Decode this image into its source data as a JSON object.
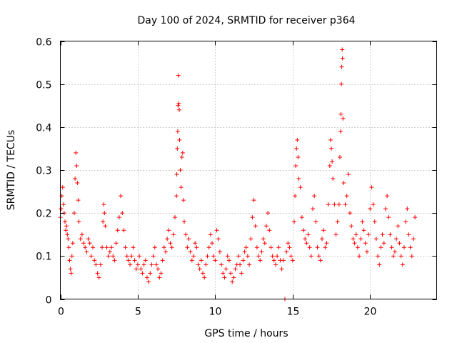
{
  "chart_data": {
    "type": "scatter",
    "title": "Day 100 of 2024, SRMTID for receiver p364",
    "xlabel": "GPS time / hours",
    "ylabel": "SRMTID / TECUs",
    "xlim": [
      0,
      24.3
    ],
    "ylim": [
      0,
      0.6
    ],
    "xticks": [
      0,
      5,
      10,
      15,
      20
    ],
    "xtick_labels": [
      "0",
      "5",
      "10",
      "15",
      "20"
    ],
    "yticks": [
      0,
      0.1,
      0.2,
      0.3,
      0.4,
      0.5,
      0.6
    ],
    "ytick_labels": [
      "0",
      "0.1",
      "0.2",
      "0.3",
      "0.4",
      "0.5",
      "0.6"
    ],
    "grid": true,
    "marker": "+",
    "color": "#ff0000",
    "series": [
      {
        "name": "SRMTID",
        "points": [
          [
            0.0,
            0.19
          ],
          [
            0.05,
            0.21
          ],
          [
            0.1,
            0.24
          ],
          [
            0.15,
            0.26
          ],
          [
            0.2,
            0.22
          ],
          [
            0.25,
            0.2
          ],
          [
            0.3,
            0.18
          ],
          [
            0.35,
            0.16
          ],
          [
            0.4,
            0.17
          ],
          [
            0.45,
            0.15
          ],
          [
            0.5,
            0.14
          ],
          [
            0.55,
            0.12
          ],
          [
            0.6,
            0.09
          ],
          [
            0.65,
            0.07
          ],
          [
            0.7,
            0.06
          ],
          [
            0.75,
            0.1
          ],
          [
            0.8,
            0.13
          ],
          [
            0.9,
            0.2
          ],
          [
            0.95,
            0.28
          ],
          [
            1.0,
            0.34
          ],
          [
            1.05,
            0.31
          ],
          [
            1.1,
            0.27
          ],
          [
            1.15,
            0.23
          ],
          [
            1.2,
            0.18
          ],
          [
            1.3,
            0.14
          ],
          [
            1.4,
            0.15
          ],
          [
            1.5,
            0.13
          ],
          [
            1.6,
            0.12
          ],
          [
            1.7,
            0.11
          ],
          [
            1.8,
            0.14
          ],
          [
            1.9,
            0.13
          ],
          [
            2.0,
            0.1
          ],
          [
            2.1,
            0.12
          ],
          [
            2.2,
            0.09
          ],
          [
            2.3,
            0.08
          ],
          [
            2.4,
            0.06
          ],
          [
            2.5,
            0.05
          ],
          [
            2.6,
            0.08
          ],
          [
            2.7,
            0.12
          ],
          [
            2.75,
            0.18
          ],
          [
            2.8,
            0.22
          ],
          [
            2.85,
            0.2
          ],
          [
            2.9,
            0.17
          ],
          [
            3.0,
            0.12
          ],
          [
            3.1,
            0.1
          ],
          [
            3.2,
            0.11
          ],
          [
            3.3,
            0.12
          ],
          [
            3.4,
            0.1
          ],
          [
            3.5,
            0.09
          ],
          [
            3.6,
            0.13
          ],
          [
            3.7,
            0.16
          ],
          [
            3.8,
            0.19
          ],
          [
            3.9,
            0.24
          ],
          [
            4.0,
            0.2
          ],
          [
            4.1,
            0.16
          ],
          [
            4.2,
            0.12
          ],
          [
            4.3,
            0.1
          ],
          [
            4.4,
            0.09
          ],
          [
            4.5,
            0.08
          ],
          [
            4.6,
            0.1
          ],
          [
            4.7,
            0.12
          ],
          [
            4.8,
            0.09
          ],
          [
            4.9,
            0.07
          ],
          [
            5.0,
            0.08
          ],
          [
            5.1,
            0.1
          ],
          [
            5.2,
            0.07
          ],
          [
            5.3,
            0.06
          ],
          [
            5.4,
            0.08
          ],
          [
            5.5,
            0.09
          ],
          [
            5.6,
            0.05
          ],
          [
            5.7,
            0.04
          ],
          [
            5.8,
            0.06
          ],
          [
            5.9,
            0.08
          ],
          [
            6.0,
            0.1
          ],
          [
            6.1,
            0.12
          ],
          [
            6.2,
            0.08
          ],
          [
            6.3,
            0.07
          ],
          [
            6.4,
            0.05
          ],
          [
            6.5,
            0.06
          ],
          [
            6.6,
            0.09
          ],
          [
            6.7,
            0.12
          ],
          [
            6.8,
            0.11
          ],
          [
            6.9,
            0.14
          ],
          [
            7.0,
            0.16
          ],
          [
            7.1,
            0.13
          ],
          [
            7.2,
            0.12
          ],
          [
            7.3,
            0.15
          ],
          [
            7.4,
            0.19
          ],
          [
            7.5,
            0.24
          ],
          [
            7.52,
            0.29
          ],
          [
            7.55,
            0.35
          ],
          [
            7.58,
            0.39
          ],
          [
            7.6,
            0.45
          ],
          [
            7.62,
            0.52
          ],
          [
            7.65,
            0.455
          ],
          [
            7.68,
            0.44
          ],
          [
            7.7,
            0.37
          ],
          [
            7.75,
            0.3
          ],
          [
            7.8,
            0.26
          ],
          [
            7.85,
            0.33
          ],
          [
            7.9,
            0.34
          ],
          [
            7.95,
            0.23
          ],
          [
            8.0,
            0.18
          ],
          [
            8.1,
            0.15
          ],
          [
            8.2,
            0.12
          ],
          [
            8.3,
            0.14
          ],
          [
            8.4,
            0.11
          ],
          [
            8.5,
            0.09
          ],
          [
            8.6,
            0.1
          ],
          [
            8.7,
            0.13
          ],
          [
            8.8,
            0.12
          ],
          [
            8.9,
            0.08
          ],
          [
            9.0,
            0.07
          ],
          [
            9.1,
            0.09
          ],
          [
            9.2,
            0.06
          ],
          [
            9.3,
            0.05
          ],
          [
            9.4,
            0.08
          ],
          [
            9.5,
            0.1
          ],
          [
            9.6,
            0.12
          ],
          [
            9.7,
            0.15
          ],
          [
            9.8,
            0.13
          ],
          [
            9.9,
            0.1
          ],
          [
            10.0,
            0.09
          ],
          [
            10.1,
            0.16
          ],
          [
            10.2,
            0.14
          ],
          [
            10.3,
            0.11
          ],
          [
            10.4,
            0.08
          ],
          [
            10.5,
            0.06
          ],
          [
            10.6,
            0.05
          ],
          [
            10.7,
            0.07
          ],
          [
            10.8,
            0.1
          ],
          [
            10.9,
            0.09
          ],
          [
            11.0,
            0.06
          ],
          [
            11.1,
            0.04
          ],
          [
            11.2,
            0.05
          ],
          [
            11.3,
            0.07
          ],
          [
            11.4,
            0.08
          ],
          [
            11.5,
            0.1
          ],
          [
            11.6,
            0.08
          ],
          [
            11.7,
            0.06
          ],
          [
            11.8,
            0.09
          ],
          [
            11.9,
            0.11
          ],
          [
            12.0,
            0.12
          ],
          [
            12.1,
            0.1
          ],
          [
            12.2,
            0.08
          ],
          [
            12.3,
            0.14
          ],
          [
            12.4,
            0.19
          ],
          [
            12.5,
            0.23
          ],
          [
            12.6,
            0.17
          ],
          [
            12.7,
            0.12
          ],
          [
            12.8,
            0.1
          ],
          [
            12.9,
            0.09
          ],
          [
            13.0,
            0.11
          ],
          [
            13.1,
            0.14
          ],
          [
            13.2,
            0.13
          ],
          [
            13.3,
            0.17
          ],
          [
            13.4,
            0.2
          ],
          [
            13.5,
            0.16
          ],
          [
            13.6,
            0.12
          ],
          [
            13.7,
            0.1
          ],
          [
            13.8,
            0.09
          ],
          [
            13.9,
            0.08
          ],
          [
            14.0,
            0.1
          ],
          [
            14.1,
            0.12
          ],
          [
            14.2,
            0.09
          ],
          [
            14.3,
            0.07
          ],
          [
            14.4,
            0.09
          ],
          [
            14.5,
            0.0
          ],
          [
            14.6,
            0.11
          ],
          [
            14.7,
            0.13
          ],
          [
            14.8,
            0.12
          ],
          [
            14.9,
            0.1
          ],
          [
            15.0,
            0.09
          ],
          [
            15.1,
            0.18
          ],
          [
            15.15,
            0.24
          ],
          [
            15.2,
            0.31
          ],
          [
            15.25,
            0.35
          ],
          [
            15.3,
            0.37
          ],
          [
            15.35,
            0.33
          ],
          [
            15.4,
            0.28
          ],
          [
            15.5,
            0.26
          ],
          [
            15.6,
            0.19
          ],
          [
            15.7,
            0.16
          ],
          [
            15.8,
            0.14
          ],
          [
            15.9,
            0.13
          ],
          [
            16.0,
            0.15
          ],
          [
            16.1,
            0.12
          ],
          [
            16.2,
            0.1
          ],
          [
            16.3,
            0.21
          ],
          [
            16.4,
            0.24
          ],
          [
            16.5,
            0.18
          ],
          [
            16.6,
            0.12
          ],
          [
            16.7,
            0.1
          ],
          [
            16.8,
            0.09
          ],
          [
            16.9,
            0.14
          ],
          [
            17.0,
            0.16
          ],
          [
            17.1,
            0.12
          ],
          [
            17.2,
            0.13
          ],
          [
            17.3,
            0.22
          ],
          [
            17.4,
            0.31
          ],
          [
            17.45,
            0.37
          ],
          [
            17.5,
            0.35
          ],
          [
            17.55,
            0.32
          ],
          [
            17.6,
            0.28
          ],
          [
            17.7,
            0.22
          ],
          [
            17.8,
            0.15
          ],
          [
            17.9,
            0.18
          ],
          [
            18.0,
            0.22
          ],
          [
            18.05,
            0.33
          ],
          [
            18.1,
            0.39
          ],
          [
            18.12,
            0.43
          ],
          [
            18.15,
            0.5
          ],
          [
            18.17,
            0.54
          ],
          [
            18.2,
            0.58
          ],
          [
            18.22,
            0.56
          ],
          [
            18.25,
            0.42
          ],
          [
            18.3,
            0.27
          ],
          [
            18.4,
            0.22
          ],
          [
            18.5,
            0.24
          ],
          [
            18.6,
            0.29
          ],
          [
            18.7,
            0.2
          ],
          [
            18.8,
            0.17
          ],
          [
            18.9,
            0.14
          ],
          [
            19.0,
            0.13
          ],
          [
            19.1,
            0.15
          ],
          [
            19.2,
            0.12
          ],
          [
            19.3,
            0.1
          ],
          [
            19.4,
            0.14
          ],
          [
            19.5,
            0.18
          ],
          [
            19.6,
            0.16
          ],
          [
            19.7,
            0.13
          ],
          [
            19.8,
            0.11
          ],
          [
            19.9,
            0.15
          ],
          [
            20.0,
            0.21
          ],
          [
            20.1,
            0.26
          ],
          [
            20.2,
            0.22
          ],
          [
            20.3,
            0.18
          ],
          [
            20.4,
            0.14
          ],
          [
            20.5,
            0.1
          ],
          [
            20.6,
            0.08
          ],
          [
            20.7,
            0.12
          ],
          [
            20.8,
            0.15
          ],
          [
            20.9,
            0.13
          ],
          [
            21.0,
            0.21
          ],
          [
            21.1,
            0.24
          ],
          [
            21.2,
            0.19
          ],
          [
            21.3,
            0.15
          ],
          [
            21.4,
            0.12
          ],
          [
            21.5,
            0.1
          ],
          [
            21.6,
            0.11
          ],
          [
            21.7,
            0.14
          ],
          [
            21.8,
            0.17
          ],
          [
            21.9,
            0.13
          ],
          [
            22.0,
            0.1
          ],
          [
            22.1,
            0.08
          ],
          [
            22.2,
            0.12
          ],
          [
            22.3,
            0.18
          ],
          [
            22.4,
            0.21
          ],
          [
            22.5,
            0.15
          ],
          [
            22.6,
            0.12
          ],
          [
            22.7,
            0.1
          ],
          [
            22.8,
            0.14
          ],
          [
            22.9,
            0.19
          ]
        ]
      }
    ]
  }
}
